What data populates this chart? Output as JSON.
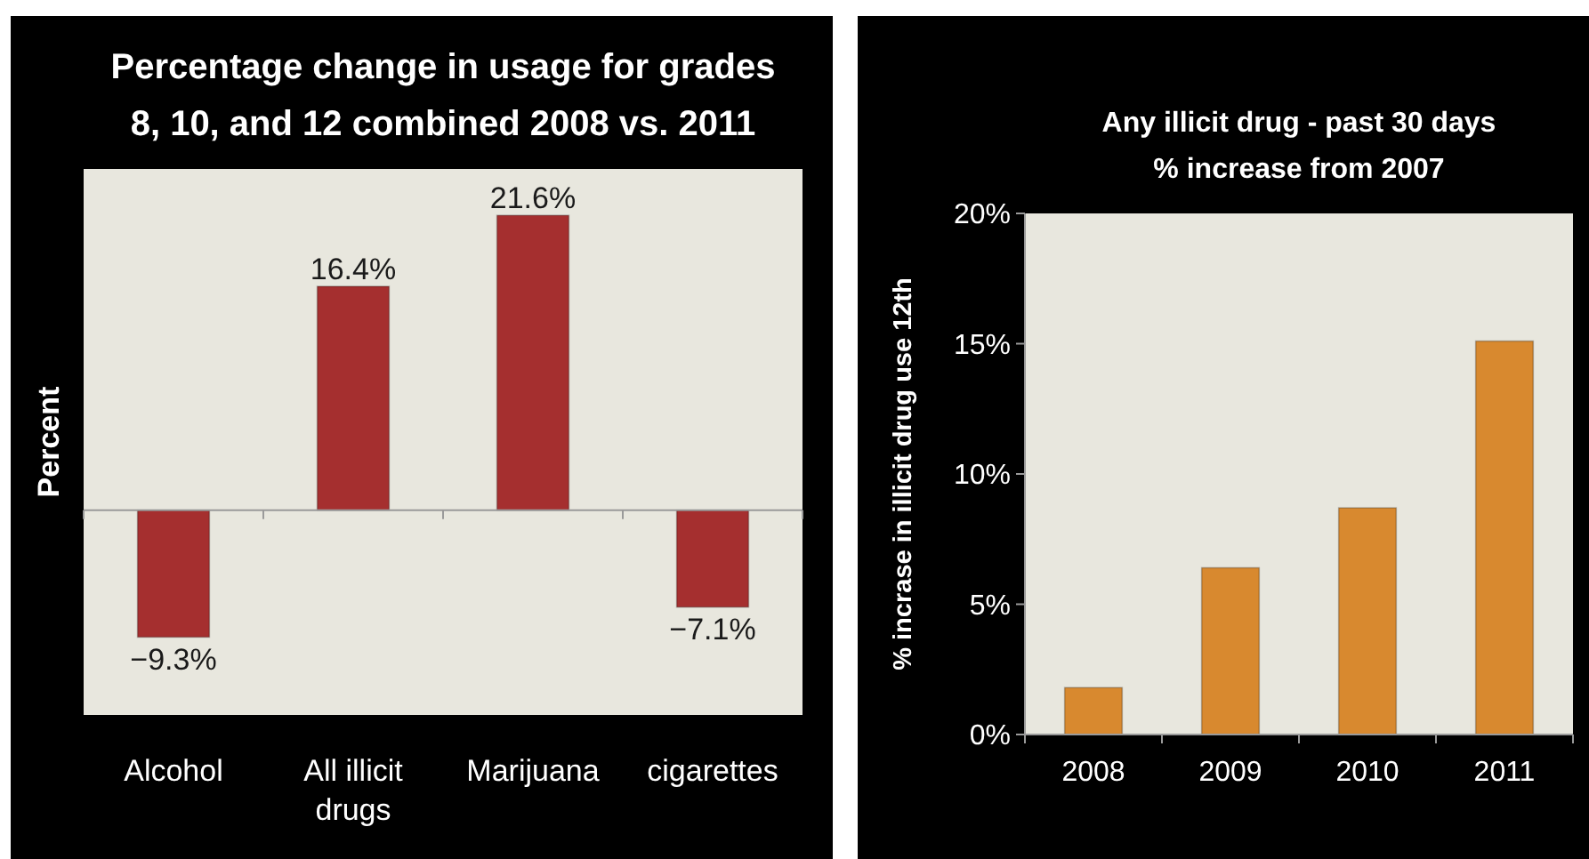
{
  "chart_data": [
    {
      "type": "bar",
      "title": "Percentage change in usage for grades\n8, 10, and 12 combined  2008 vs. 2011",
      "ylabel": "Percent",
      "categories": [
        "Alcohol",
        "All illicit drugs",
        "Marijuana",
        "cigarettes"
      ],
      "values": [
        -9.3,
        16.4,
        21.6,
        -7.1
      ],
      "color": "#a52f2f",
      "ylim": [
        -15,
        25
      ],
      "value_labels": [
        "−9.3%",
        "16.4%",
        "21.6%",
        "−7.1%"
      ],
      "tick_labels": "x"
    },
    {
      "type": "bar",
      "title": "Any illicit drug - past 30 days\n% increase from 2007",
      "ylabel": "% incrase in illicit drug use 12th",
      "categories": [
        "2008",
        "2009",
        "2010",
        "2011"
      ],
      "values": [
        1.8,
        6.4,
        8.7,
        15.1
      ],
      "color": "#d8892f",
      "ylim": [
        0,
        20
      ],
      "yticks": [
        {
          "value": 0,
          "label": "0%"
        },
        {
          "value": 5,
          "label": "5%"
        },
        {
          "value": 10,
          "label": "10%"
        },
        {
          "value": 15,
          "label": "15%"
        },
        {
          "value": 20,
          "label": "20%"
        }
      ]
    }
  ]
}
